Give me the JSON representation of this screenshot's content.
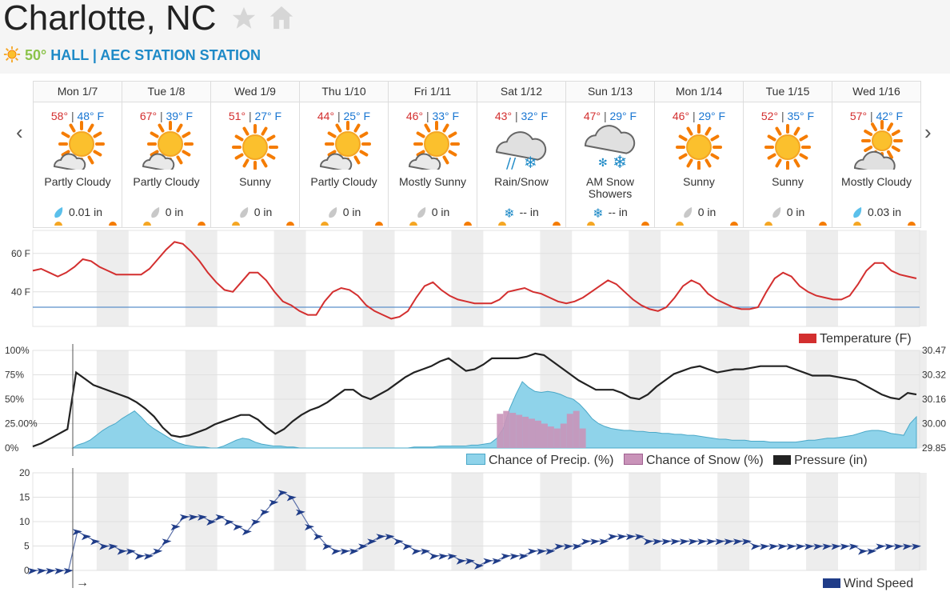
{
  "header": {
    "city": "Charlotte, NC",
    "current_temp": "50°",
    "station": "HALL | AEC STATION STATION"
  },
  "days": [
    {
      "name": "Mon 1/7",
      "hi": "58°",
      "lo": "48° F",
      "cond": "Partly Cloudy",
      "precip": "0.01 in",
      "icon": "partly-cloudy-icon",
      "drop": "rain"
    },
    {
      "name": "Tue 1/8",
      "hi": "67°",
      "lo": "39° F",
      "cond": "Partly Cloudy",
      "precip": "0 in",
      "icon": "partly-cloudy-icon",
      "drop": "none"
    },
    {
      "name": "Wed 1/9",
      "hi": "51°",
      "lo": "27° F",
      "cond": "Sunny",
      "precip": "0 in",
      "icon": "sunny-icon",
      "drop": "none"
    },
    {
      "name": "Thu 1/10",
      "hi": "44°",
      "lo": "25° F",
      "cond": "Partly Cloudy",
      "precip": "0 in",
      "icon": "partly-cloudy-icon",
      "drop": "none"
    },
    {
      "name": "Fri 1/11",
      "hi": "46°",
      "lo": "33° F",
      "cond": "Mostly Sunny",
      "precip": "0 in",
      "icon": "mostly-sunny-icon",
      "drop": "none"
    },
    {
      "name": "Sat 1/12",
      "hi": "43°",
      "lo": "32° F",
      "cond": "Rain/Snow",
      "precip": "-- in",
      "icon": "rain-snow-icon",
      "drop": "snow"
    },
    {
      "name": "Sun 1/13",
      "hi": "47°",
      "lo": "29° F",
      "cond": "AM Snow Showers",
      "precip": "-- in",
      "icon": "snow-showers-icon",
      "drop": "snow"
    },
    {
      "name": "Mon 1/14",
      "hi": "46°",
      "lo": "29° F",
      "cond": "Sunny",
      "precip": "0 in",
      "icon": "sunny-icon",
      "drop": "none"
    },
    {
      "name": "Tue 1/15",
      "hi": "52°",
      "lo": "35° F",
      "cond": "Sunny",
      "precip": "0 in",
      "icon": "sunny-icon",
      "drop": "none"
    },
    {
      "name": "Wed 1/16",
      "hi": "57°",
      "lo": "42° F",
      "cond": "Mostly Cloudy",
      "precip": "0.03 in",
      "icon": "mostly-cloudy-icon",
      "drop": "rain"
    }
  ],
  "chart_data": [
    {
      "type": "line",
      "legend": [
        "Temperature (F)"
      ],
      "ytick_labels": [
        "60 F",
        "40 F"
      ],
      "ylim": [
        22,
        72
      ],
      "colors": {
        "temperature": "#d32f2f",
        "freezing_line": "#5b8fc9"
      },
      "freezing_line": 32,
      "series": [
        {
          "name": "Temperature (F)",
          "values": [
            51,
            52,
            50,
            48,
            50,
            53,
            57,
            56,
            53,
            51,
            49,
            49,
            49,
            49,
            52,
            57,
            62,
            66,
            65,
            61,
            56,
            50,
            45,
            41,
            40,
            45,
            50,
            50,
            46,
            40,
            35,
            33,
            30,
            28,
            28,
            35,
            40,
            42,
            41,
            38,
            33,
            30,
            28,
            26,
            27,
            30,
            37,
            43,
            45,
            41,
            38,
            36,
            35,
            34,
            34,
            34,
            36,
            40,
            41,
            42,
            40,
            39,
            37,
            35,
            34,
            35,
            37,
            40,
            43,
            46,
            44,
            40,
            36,
            33,
            31,
            30,
            32,
            37,
            43,
            46,
            44,
            39,
            36,
            34,
            32,
            31,
            31,
            32,
            40,
            47,
            50,
            48,
            43,
            40,
            38,
            37,
            36,
            36,
            38,
            44,
            51,
            55,
            55,
            51,
            49,
            48,
            47
          ]
        }
      ]
    },
    {
      "type": "area",
      "legend": [
        "Chance of Precip. (%)",
        "Chance of Snow (%)",
        "Pressure (in)"
      ],
      "ytick_labels_left": [
        "100%",
        "75%",
        "50%",
        "25.00%",
        "0%"
      ],
      "ytick_labels_right": [
        "30.47",
        "30.32",
        "30.16",
        "30.00",
        "29.85"
      ],
      "ylim_left": [
        0,
        100
      ],
      "ylim_right": [
        29.85,
        30.47
      ],
      "colors": {
        "precip": "#8fd3ea",
        "snow": "#c993b9",
        "pressure": "#222222"
      },
      "series": [
        {
          "name": "Chance of Precip. (%)",
          "values": [
            0,
            0,
            0,
            0,
            0,
            1,
            2,
            3,
            5,
            8,
            13,
            18,
            22,
            25,
            30,
            34,
            38,
            32,
            25,
            20,
            16,
            12,
            8,
            5,
            3,
            2,
            1,
            1,
            0,
            0,
            2,
            5,
            8,
            10,
            9,
            6,
            4,
            3,
            2,
            2,
            1,
            1,
            0,
            0,
            0,
            0,
            0,
            0,
            0,
            0,
            0,
            0,
            0,
            0,
            0,
            0,
            0,
            0,
            0,
            0,
            1,
            1,
            1,
            1,
            2,
            2,
            2,
            2,
            2,
            3,
            3,
            4,
            5,
            10,
            20,
            40,
            55,
            68,
            62,
            58,
            57,
            58,
            57,
            55,
            52,
            50,
            45,
            38,
            30,
            25,
            22,
            20,
            19,
            18,
            18,
            17,
            17,
            16,
            16,
            15,
            15,
            14,
            14,
            13,
            13,
            12,
            11,
            10,
            9,
            9,
            8,
            8,
            8,
            7,
            7,
            7,
            6,
            6,
            6,
            6,
            6,
            7,
            8,
            8,
            9,
            10,
            10,
            11,
            12,
            13,
            15,
            17,
            18,
            18,
            17,
            15,
            14,
            13,
            25,
            32
          ]
        },
        {
          "name": "Chance of Snow (%)",
          "values": [
            0,
            0,
            0,
            0,
            0,
            0,
            0,
            0,
            0,
            0,
            0,
            0,
            0,
            0,
            0,
            0,
            0,
            0,
            0,
            0,
            0,
            0,
            0,
            0,
            0,
            0,
            0,
            0,
            0,
            0,
            0,
            0,
            0,
            0,
            0,
            0,
            0,
            0,
            0,
            0,
            0,
            0,
            0,
            0,
            0,
            0,
            0,
            0,
            0,
            0,
            0,
            0,
            0,
            0,
            0,
            0,
            0,
            0,
            0,
            0,
            0,
            0,
            0,
            0,
            0,
            0,
            0,
            0,
            0,
            0,
            0,
            0,
            0,
            35,
            38,
            36,
            34,
            32,
            30,
            28,
            25,
            22,
            20,
            25,
            35,
            38,
            20,
            0,
            0,
            0,
            0,
            0,
            0,
            0,
            0,
            0,
            0,
            0,
            0,
            0,
            0,
            0,
            0,
            0,
            0,
            0,
            0,
            0,
            0,
            0,
            0,
            0,
            0,
            0,
            0,
            0,
            0,
            0,
            0,
            0,
            0,
            0,
            0,
            0,
            0,
            0,
            0,
            0,
            0,
            0,
            0,
            0,
            0,
            0,
            0,
            0,
            0,
            0,
            0,
            0
          ]
        },
        {
          "name": "Pressure (in)",
          "values": [
            29.86,
            29.88,
            29.91,
            29.94,
            29.97,
            30.33,
            30.29,
            30.25,
            30.23,
            30.21,
            30.19,
            30.17,
            30.14,
            30.1,
            30.05,
            29.98,
            29.93,
            29.92,
            29.93,
            29.95,
            29.97,
            30.0,
            30.02,
            30.04,
            30.06,
            30.06,
            30.03,
            29.98,
            29.94,
            29.97,
            30.02,
            30.06,
            30.09,
            30.11,
            30.14,
            30.18,
            30.22,
            30.22,
            30.18,
            30.16,
            30.19,
            30.22,
            30.26,
            30.3,
            30.33,
            30.35,
            30.37,
            30.4,
            30.42,
            30.38,
            30.34,
            30.35,
            30.38,
            30.42,
            30.42,
            30.42,
            30.42,
            30.43,
            30.45,
            30.44,
            30.4,
            30.36,
            30.32,
            30.28,
            30.25,
            30.22,
            30.22,
            30.22,
            30.2,
            30.17,
            30.16,
            30.19,
            30.24,
            30.28,
            30.32,
            30.34,
            30.36,
            30.37,
            30.35,
            30.33,
            30.34,
            30.35,
            30.35,
            30.36,
            30.37,
            30.37,
            30.37,
            30.37,
            30.35,
            30.33,
            30.31,
            30.31,
            30.31,
            30.3,
            30.29,
            30.28,
            30.25,
            30.22,
            30.19,
            30.17,
            30.16,
            30.2,
            30.19
          ]
        }
      ]
    },
    {
      "type": "line",
      "legend": [
        "Wind Speed"
      ],
      "ytick_labels": [
        "20",
        "15",
        "10",
        "5",
        "0"
      ],
      "ylim": [
        0,
        20
      ],
      "colors": {
        "wind": "#1f3c88"
      },
      "series": [
        {
          "name": "Wind Speed",
          "values": [
            0,
            0,
            0,
            0,
            0,
            8,
            7,
            6,
            5,
            5,
            4,
            4,
            3,
            3,
            4,
            6,
            9,
            11,
            11,
            11,
            10,
            11,
            10,
            9,
            8,
            10,
            12,
            14,
            16,
            15,
            12,
            9,
            7,
            5,
            4,
            4,
            4,
            5,
            6,
            7,
            7,
            6,
            5,
            4,
            4,
            3,
            3,
            3,
            2,
            2,
            1,
            2,
            2,
            3,
            3,
            3,
            4,
            4,
            4,
            5,
            5,
            5,
            6,
            6,
            6,
            7,
            7,
            7,
            7,
            6,
            6,
            6,
            6,
            6,
            6,
            6,
            6,
            6,
            6,
            6,
            6,
            5,
            5,
            5,
            5,
            5,
            5,
            5,
            5,
            5,
            5,
            5,
            5,
            4,
            4,
            5,
            5,
            5,
            5,
            5
          ]
        }
      ]
    }
  ],
  "icons": {
    "star": "star-icon",
    "home": "home-icon",
    "sun": "sun-icon",
    "prev": "chevron-left-icon",
    "next": "chevron-right-icon"
  }
}
